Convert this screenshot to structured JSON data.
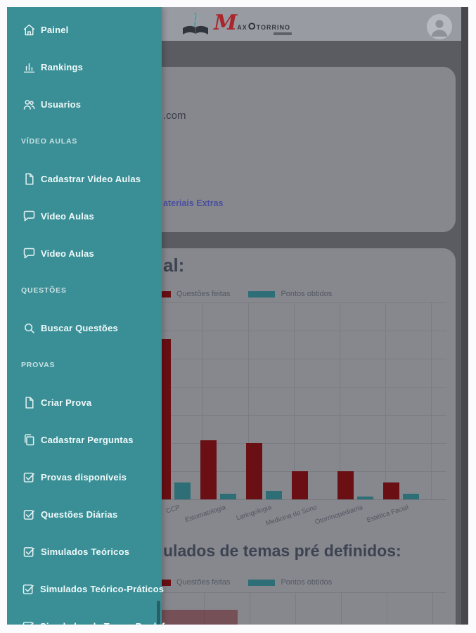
{
  "colors": {
    "sidebar_teal": "#3a8f97",
    "brand_red": "#a8262c",
    "bar_red": "#6a0f14",
    "bar_teal": "#2e6e77",
    "link_blue": "#4a4fa0"
  },
  "header": {
    "brand": {
      "m": "M",
      "ax": "AX",
      "o": "O",
      "torrino": "TORRINO"
    },
    "avatar_icon": "user-avatar-icon"
  },
  "sidebar": {
    "items": [
      {
        "type": "link",
        "icon": "home-icon",
        "label": "Painel"
      },
      {
        "type": "link",
        "icon": "bar-chart-icon",
        "label": "Rankings"
      },
      {
        "type": "link",
        "icon": "users-icon",
        "label": "Usuarios"
      },
      {
        "type": "section",
        "label": "VÍDEO AULAS"
      },
      {
        "type": "link",
        "icon": "file-icon",
        "label": "Cadastrar Video Aulas"
      },
      {
        "type": "link",
        "icon": "chat-icon",
        "label": "Video Aulas"
      },
      {
        "type": "link",
        "icon": "chat-icon",
        "label": "Video Aulas"
      },
      {
        "type": "section",
        "label": "QUESTÕES"
      },
      {
        "type": "link",
        "icon": "search-icon",
        "label": "Buscar Questões"
      },
      {
        "type": "section",
        "label": "PROVAS"
      },
      {
        "type": "link",
        "icon": "file-icon",
        "label": "Criar Prova"
      },
      {
        "type": "link",
        "icon": "copy-icon",
        "label": "Cadastrar Perguntas"
      },
      {
        "type": "link",
        "icon": "checkbox-icon",
        "label": "Provas disponíveis"
      },
      {
        "type": "link",
        "icon": "checkbox-icon",
        "label": "Questões Diárias"
      },
      {
        "type": "link",
        "icon": "checkbox-icon",
        "label": "Simulados Teóricos"
      },
      {
        "type": "link",
        "icon": "checkbox-icon",
        "label": "Simulados Teórico-Práticos"
      },
      {
        "type": "link",
        "icon": "checkbox-icon",
        "label": "Simulados de Temas Predef"
      }
    ]
  },
  "main": {
    "account_card": {
      "email_fragment": ".com",
      "materiais_link_fragment": "ateriais Extras"
    },
    "performance": {
      "title_fragment": "al:"
    },
    "simulados": {
      "title_fragment": "ulados de temas pré definidos:"
    }
  },
  "chart_data": [
    {
      "type": "bar",
      "title_fragment": "al:",
      "categories": [
        "CCP",
        "Estomatologia",
        "Laringologia",
        "Medicina do Sono",
        "Otorrinopediatria",
        "Estética Facial"
      ],
      "series": [
        {
          "name": "Questões feitas",
          "color": "#6a0f14",
          "values": [
            57,
            21,
            20,
            10,
            10,
            6
          ]
        },
        {
          "name": "Pontos obtidos",
          "color": "#2e6e77",
          "values": [
            6,
            2,
            3,
            0,
            1,
            2
          ]
        }
      ],
      "xlabel": "",
      "ylabel": "",
      "ylim": [
        0,
        70
      ],
      "grid": true,
      "grid_step": 10,
      "legend_position": "top-left",
      "y_axis_visible": false
    },
    {
      "type": "bar",
      "title_fragment": "ulados de temas pré definidos:",
      "categories": [],
      "series": [
        {
          "name": "Questões feitas",
          "color": "#6a0f14",
          "values": []
        },
        {
          "name": "Pontos obtidos",
          "color": "#2e6e77",
          "values": []
        }
      ],
      "grid": true,
      "legend_position": "top-left",
      "visible_portion": "only top of plot area visible"
    }
  ]
}
